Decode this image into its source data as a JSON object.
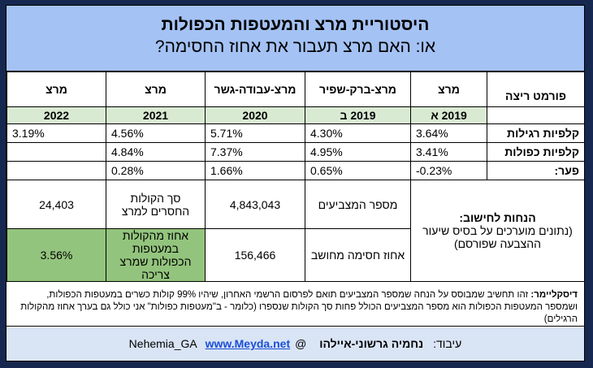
{
  "header": {
    "title": "היסטוריית מרצ והמעטפות הכפולות",
    "subtitle": "או: האם מרצ תעבור את אחוז החסימה?"
  },
  "columns": {
    "row_label_header": "פורמט ריצה",
    "col1": "מרצ",
    "col2": "מרצ-ברק-שפיר",
    "col3": "מרצ-עבודה-גשר",
    "col4": "מרצ",
    "col5": "מרצ"
  },
  "years": {
    "col1": "2019 א",
    "col2": "2019 ב",
    "col3": "2020",
    "col4": "2021",
    "col5": "2022"
  },
  "rows": {
    "regular": {
      "label": "קלפיות רגילות",
      "col1": "3.64%",
      "col2": "4.30%",
      "col3": "5.71%",
      "col4": "4.56%",
      "col5": "3.19%"
    },
    "double": {
      "label": "קלפיות כפולות",
      "col1": "3.41%",
      "col2": "4.95%",
      "col3": "7.37%",
      "col4": "4.84%",
      "col5": ""
    },
    "gap": {
      "label": "פער:",
      "col1": "-0.23%",
      "col2": "0.65%",
      "col3": "1.66%",
      "col4": "0.28%",
      "col5": ""
    }
  },
  "calc": {
    "assumptions_title": "הנחות לחישוב:",
    "assumptions_text": "(נתונים מוערכים על בסיס שיעור ההצבעה שפורסם)",
    "voters_label": "מספר המצביעים",
    "voters_value": "4,843,043",
    "missing_label": "סך הקולות החסרים למרצ",
    "missing_value": "24,403",
    "threshold_label": "אחוז חסימה מחושב",
    "threshold_value": "156,466",
    "needed_label": "אחוז מהקולות במעטפות הכפולות שמרצ צריכה",
    "needed_value": "3.56%"
  },
  "disclaimer": {
    "label": "דיסקליימר:",
    "text": "זהו תחשיב שמבוסס על הנחה שמספר המצביעים תואם לפרסום הרשמי האחרון, שיהיו 99% קולות כשרים במעטפות הכפולות, ושמספר המעטפות הכפולות הוא מספר המצביעים הכולל פחות סך הקולות שנספרו (כלומר - ב\"מעטפות כפולות\" אני כולל גם בערך אחוז מהקולות הרגילים)"
  },
  "footer": {
    "prefix": "עיבוד:",
    "author": "נחמיה גרשוני-איילהו",
    "handle": "@Nehemia_GA",
    "link": "www.Meyda.net"
  },
  "colors": {
    "header_bg": "#a4c2f4",
    "year_row_bg": "#d9ead3",
    "highlight_bg": "#93c47d",
    "link": "#1a4fd6",
    "page_bg": "#16284f"
  }
}
